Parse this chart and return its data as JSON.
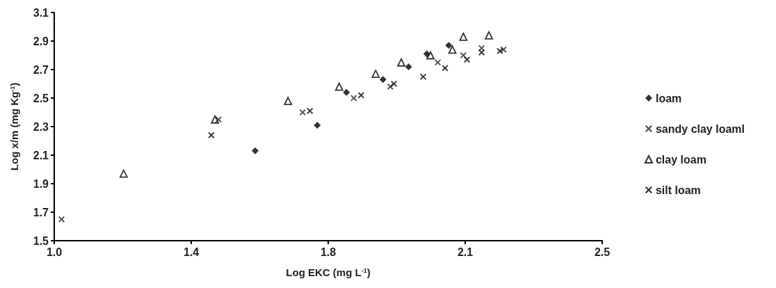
{
  "chart_data": {
    "type": "scatter",
    "xlabel": "Log EKC (mg L$^{-1}$)",
    "ylabel": "Log x/m (mg Kg$^{-1}$)",
    "xlim": [
      1.0,
      2.5
    ],
    "xticks": [
      {
        "value": 1.0,
        "label": "1.0"
      },
      {
        "value": 1.375,
        "label": "1.4"
      },
      {
        "value": 1.75,
        "label": "1.8"
      },
      {
        "value": 2.125,
        "label": "2.1"
      },
      {
        "value": 2.5,
        "label": "2.5"
      }
    ],
    "ylim": [
      1.5,
      3.1
    ],
    "yticks": [
      1.5,
      1.7,
      1.9,
      2.1,
      2.3,
      2.5,
      2.7,
      2.9,
      3.1
    ],
    "grid": false,
    "legend": "right",
    "series": [
      {
        "name": "loam",
        "color": "#000000",
        "marker": "diamond",
        "x": [
          1.55,
          1.72,
          1.8,
          1.9,
          1.97,
          2.02,
          2.08
        ],
        "values": [
          2.13,
          2.31,
          2.54,
          2.63,
          2.72,
          2.81,
          2.87
        ]
      },
      {
        "name": "sandy clay loaml",
        "color": "#222222",
        "marker": "cross",
        "x": [
          1.02,
          1.45,
          1.68,
          1.82,
          1.92,
          2.05,
          2.12,
          2.17,
          2.23
        ],
        "values": [
          1.65,
          2.35,
          2.4,
          2.5,
          2.58,
          2.75,
          2.8,
          2.85,
          2.84
        ]
      },
      {
        "name": "clay loam",
        "color": "#000000",
        "marker": "triangle",
        "x": [
          1.19,
          1.44,
          1.64,
          1.78,
          1.88,
          1.95,
          2.03,
          2.09,
          2.12,
          2.19
        ],
        "values": [
          1.97,
          2.35,
          2.48,
          2.58,
          2.67,
          2.75,
          2.8,
          2.84,
          2.93,
          2.94
        ]
      },
      {
        "name": "silt loam",
        "color": "#000000",
        "marker": "cross",
        "x": [
          1.43,
          1.7,
          1.84,
          1.93,
          2.01,
          2.07,
          2.13,
          2.17,
          2.22
        ],
        "values": [
          2.24,
          2.41,
          2.52,
          2.6,
          2.65,
          2.71,
          2.77,
          2.82,
          2.83
        ]
      }
    ]
  }
}
